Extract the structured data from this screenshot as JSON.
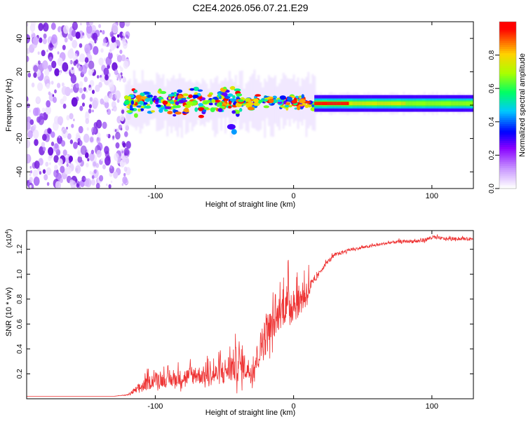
{
  "page_title": "C2E4.2026.056.07.21.E29",
  "chart_data": [
    {
      "type": "heatmap",
      "title": "C2E4.2026.056.07.21.E29",
      "xlabel": "Height of straight line (km)",
      "ylabel": "Frequency (Hz)",
      "xlim": [
        -193,
        130
      ],
      "ylim": [
        -50,
        50
      ],
      "xticks": [
        -100,
        0,
        100
      ],
      "yticks": [
        40,
        20,
        0,
        -20,
        -40
      ],
      "colorbar": {
        "label": "Normalized spectral amplitude",
        "range": [
          0.0,
          1.0
        ],
        "ticks": [
          0.0,
          0.2,
          0.4,
          0.6,
          0.8
        ],
        "colors": [
          "#ffffff",
          "#8800ff",
          "#0000ff",
          "#00ccff",
          "#00ff66",
          "#aaff00",
          "#ffcc00",
          "#ff0000"
        ]
      },
      "features": [
        {
          "name": "noise-region",
          "x_range": [
            -193,
            -122
          ],
          "freq_range": [
            -50,
            50
          ],
          "amplitude": 0.15
        },
        {
          "name": "main-signal-track",
          "x_start": -122,
          "x_end": 130,
          "center_freq_hz": 1
        },
        {
          "name": "side-blob",
          "x": -43,
          "freq_hz": -16,
          "amplitude": 0.45
        }
      ]
    },
    {
      "type": "line",
      "xlabel": "Height of straight line (km)",
      "ylabel": "SNR (10 * v/v)",
      "scale_label": "(x10",
      "scale_exp": "4",
      "scale_close": ")",
      "xlim": [
        -193,
        130
      ],
      "ylim": [
        0,
        1.35
      ],
      "xticks": [
        -100,
        0,
        100
      ],
      "yticks": [
        0.2,
        0.4,
        0.6,
        0.8,
        1.0,
        1.2
      ],
      "series": [
        {
          "name": "SNR",
          "color": "#ee3333",
          "envelope_x": [
            -193,
            -130,
            -120,
            -110,
            -100,
            -90,
            -80,
            -70,
            -60,
            -50,
            -40,
            -35,
            -30,
            -25,
            -20,
            -15,
            -10,
            -5,
            0,
            5,
            10,
            15,
            20,
            25,
            30,
            40,
            50,
            60,
            70,
            80,
            90,
            95,
            100,
            110,
            120,
            130
          ],
          "envelope_y": [
            0.02,
            0.02,
            0.03,
            0.08,
            0.14,
            0.13,
            0.15,
            0.17,
            0.16,
            0.19,
            0.24,
            0.22,
            0.18,
            0.33,
            0.47,
            0.55,
            0.65,
            0.72,
            0.72,
            0.75,
            0.83,
            0.93,
            1.03,
            1.1,
            1.15,
            1.19,
            1.21,
            1.23,
            1.25,
            1.26,
            1.26,
            1.27,
            1.29,
            1.28,
            1.28,
            1.28
          ],
          "spike_amplitude": [
            0.0,
            0.0,
            0.01,
            0.12,
            0.15,
            0.14,
            0.17,
            0.18,
            0.19,
            0.26,
            0.38,
            0.27,
            0.22,
            0.33,
            0.45,
            0.32,
            0.32,
            0.4,
            0.38,
            0.3,
            0.3,
            0.06,
            0.05,
            0.04,
            0.04,
            0.03,
            0.03,
            0.03,
            0.03,
            0.03,
            0.04,
            0.04,
            0.04,
            0.03,
            0.03,
            0.03
          ]
        }
      ]
    }
  ]
}
